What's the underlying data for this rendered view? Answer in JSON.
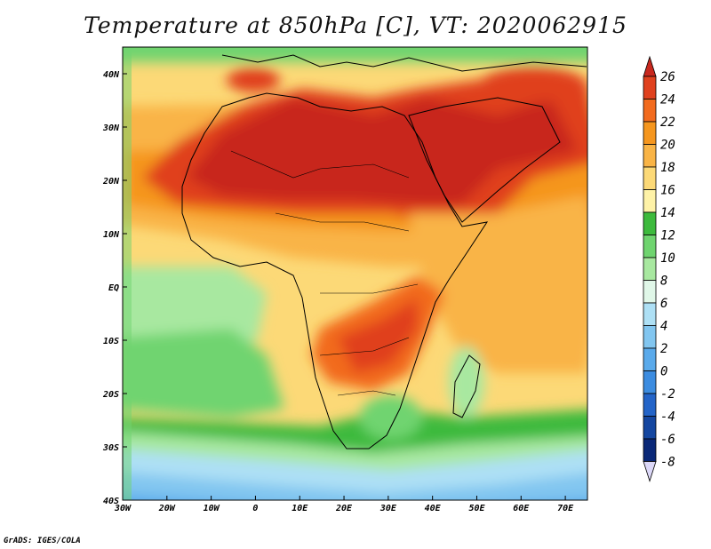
{
  "title": "Temperature at 850hPa [C], VT: 2020062915",
  "credit": "GrADS: IGES/COLA",
  "map": {
    "lon_labels": [
      "30W",
      "20W",
      "10W",
      "0",
      "10E",
      "20E",
      "30E",
      "40E",
      "50E",
      "60E",
      "70E"
    ],
    "lat_labels": [
      "40N",
      "30N",
      "20N",
      "10N",
      "EQ",
      "10S",
      "20S",
      "30S",
      "40S"
    ],
    "lon_range": [
      -30,
      75
    ],
    "lat_range": [
      -40,
      45
    ]
  },
  "colorbar": {
    "labels": [
      "26",
      "24",
      "22",
      "20",
      "18",
      "16",
      "14",
      "12",
      "10",
      "8",
      "6",
      "4",
      "2",
      "0",
      "-2",
      "-4",
      "-6",
      "-8"
    ],
    "colors": [
      "#c8281e",
      "#e0411e",
      "#f26b1e",
      "#f5961e",
      "#f9b446",
      "#fcd977",
      "#fef2a7",
      "#3dba3d",
      "#6fd46f",
      "#a8e8a0",
      "#e0f7e8",
      "#aee0f5",
      "#82c6f0",
      "#5aaaeb",
      "#3c8ce0",
      "#2364c8",
      "#1446a0",
      "#0a2878",
      "#dcd8f8"
    ]
  }
}
